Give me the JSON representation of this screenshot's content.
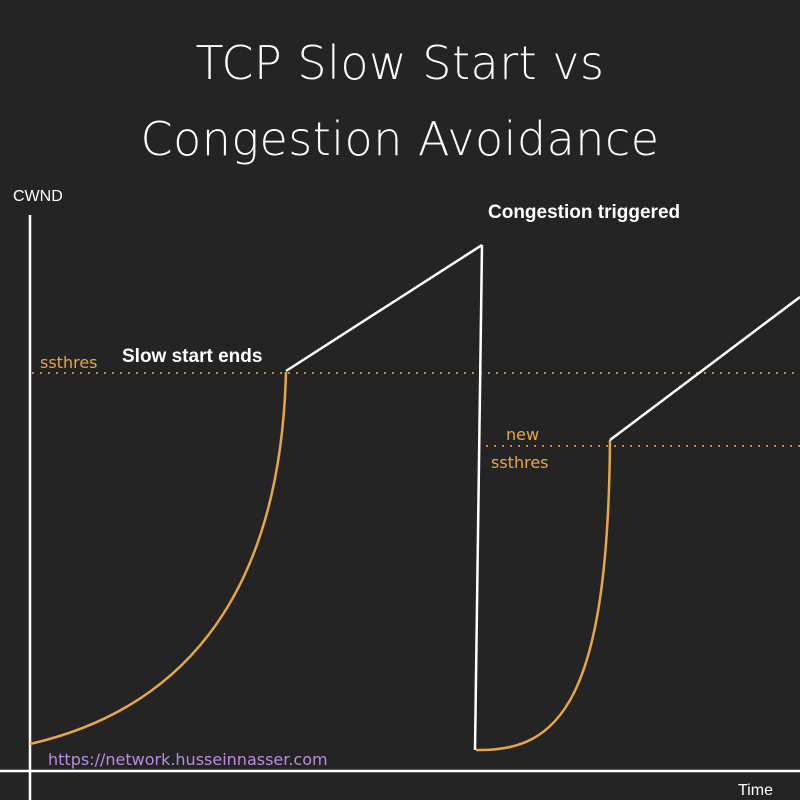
{
  "title_line1": "TCP Slow Start vs",
  "title_line2": "Congestion Avoidance",
  "y_axis_label": "CWND",
  "x_axis_label": "Time",
  "annotations": {
    "slow_start_ends": "Slow start ends",
    "congestion_triggered": "Congestion triggered",
    "ssthres": "ssthres",
    "new_ssthres_line1": "new",
    "new_ssthres_line2": "ssthres"
  },
  "source_url": "https://network.husseinnasser.com",
  "colors": {
    "background": "#242424",
    "axis": "#ffffff",
    "slow_start_curve": "#e8a64a",
    "linear_line": "#ffffff",
    "threshold_dotted": "#c98a3a",
    "url": "#b98de0"
  }
}
